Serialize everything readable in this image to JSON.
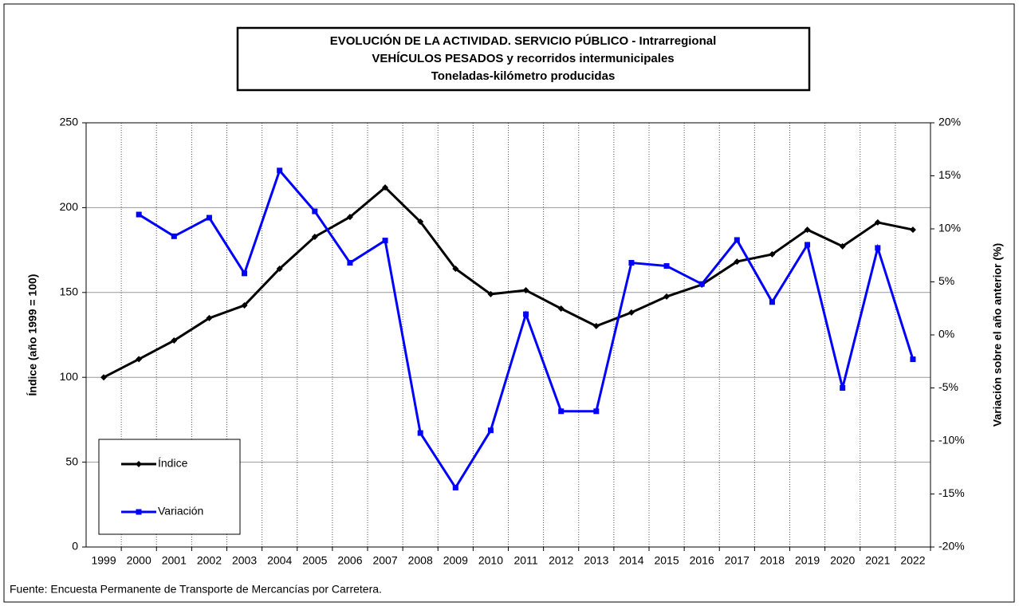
{
  "chart_data": {
    "type": "line",
    "title": [
      "EVOLUCIÓN  DE  LA  ACTIVIDAD.  SERVICIO  PÚBLICO - Intrarregional",
      "VEHÍCULOS   PESADOS   y  recorridos  intermunicipales",
      "Toneladas-kilómetro producidas"
    ],
    "y_label": "Índice (año 1999 = 100)",
    "y2_label": "Variación sobre el año anterior (%)",
    "source": "Fuente: Encuesta Permanente de Transporte de Mercancías por Carretera.",
    "categories": [
      "1999",
      "2000",
      "2001",
      "2002",
      "2003",
      "2004",
      "2005",
      "2006",
      "2007",
      "2008",
      "2009",
      "2010",
      "2011",
      "2012",
      "2013",
      "2014",
      "2015",
      "2016",
      "2017",
      "2018",
      "2019",
      "2020",
      "2021",
      "2022"
    ],
    "series": [
      {
        "name": "Índice",
        "color": "#000000",
        "axis": "y",
        "marker": "diamond",
        "values": [
          100,
          110.7,
          121.7,
          134.9,
          142.4,
          164,
          182.8,
          194.5,
          211.9,
          191.7,
          164,
          149,
          151.3,
          140.5,
          130.2,
          138.2,
          147.6,
          154.6,
          168.2,
          172.5,
          187,
          177.2,
          191.3,
          187
        ]
      },
      {
        "name": "Variación",
        "color": "#0000ff",
        "axis": "y2",
        "marker": "square",
        "values": [
          null,
          11.35,
          9.3,
          11.05,
          5.8,
          15.5,
          11.65,
          6.8,
          8.9,
          -9.25,
          -14.4,
          -9.0,
          1.95,
          -7.2,
          -7.2,
          6.8,
          6.5,
          4.8,
          8.95,
          3.1,
          8.5,
          -5.0,
          8.2,
          -2.3
        ]
      }
    ],
    "ylim": [
      0,
      250
    ],
    "yticks": [
      0,
      50,
      100,
      150,
      200,
      250
    ],
    "y2lim": [
      -20,
      20
    ],
    "y2ticks": [
      {
        "value": -20,
        "label": "-20%"
      },
      {
        "value": -15,
        "label": "-15%"
      },
      {
        "value": -10,
        "label": "-10%"
      },
      {
        "value": -5,
        "label": "-5%"
      },
      {
        "value": 0,
        "label": "0%"
      },
      {
        "value": 5,
        "label": "5%"
      },
      {
        "value": 10,
        "label": "10%"
      },
      {
        "value": 15,
        "label": "15%"
      },
      {
        "value": 20,
        "label": "20%"
      }
    ],
    "grid": true
  }
}
